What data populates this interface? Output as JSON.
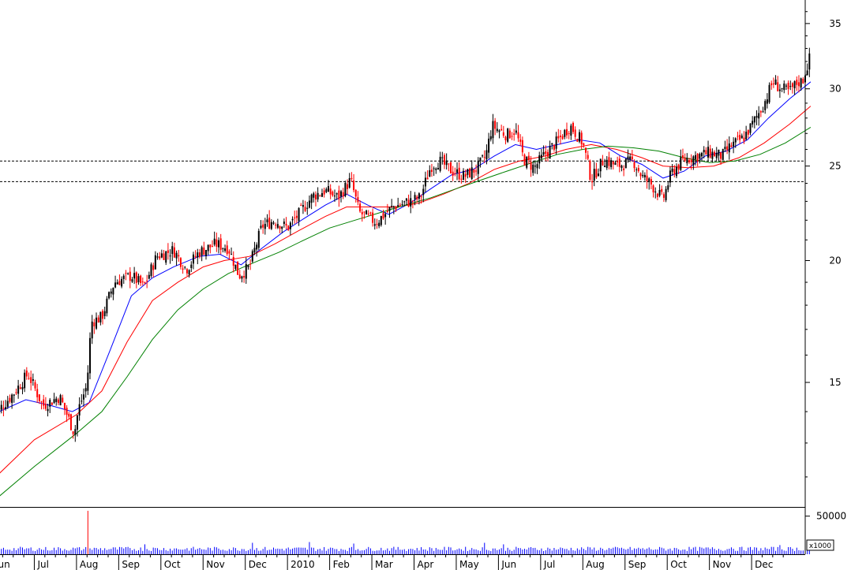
{
  "chart_data": {
    "type": "candlestick",
    "title": "",
    "xlabel": "",
    "ylabel": "",
    "y_scale": "log",
    "ylim": [
      11.2,
      37
    ],
    "y_ticks": [
      15,
      20,
      25,
      30,
      35
    ],
    "x_tick_labels": [
      "Jun",
      "Jul",
      "Aug",
      "Sep",
      "Oct",
      "Nov",
      "Dec",
      "2010",
      "Feb",
      "Mar",
      "Apr",
      "May",
      "Jun",
      "Jul",
      "Aug",
      "Sep",
      "Oct",
      "Nov",
      "Dec"
    ],
    "grid": false,
    "colors": {
      "up": "#000000",
      "down": "#ff0000",
      "ma_short": "#0000ff",
      "ma_mid": "#ff0000",
      "ma_long": "#008000",
      "volume": "#0000ff",
      "reference": "#000000"
    },
    "reference_lines": [
      25.3,
      24.1
    ],
    "price_path": [
      [
        0,
        13.8
      ],
      [
        0.5,
        14.6
      ],
      [
        0.85,
        15.3
      ],
      [
        1.2,
        14.2
      ],
      [
        1.6,
        14.5
      ],
      [
        1.95,
        13.3
      ],
      [
        2.05,
        14.1
      ],
      [
        2.25,
        14.9
      ],
      [
        2.35,
        17.3
      ],
      [
        2.6,
        17.5
      ],
      [
        2.9,
        19.0
      ],
      [
        3.3,
        19.3
      ],
      [
        3.6,
        18.8
      ],
      [
        3.9,
        20.2
      ],
      [
        4.3,
        20.5
      ],
      [
        4.6,
        19.6
      ],
      [
        4.9,
        20.4
      ],
      [
        5.3,
        20.8
      ],
      [
        5.6,
        20.6
      ],
      [
        5.85,
        19.3
      ],
      [
        6.1,
        19.7
      ],
      [
        6.4,
        21.7
      ],
      [
        6.7,
        22.0
      ],
      [
        7.0,
        21.6
      ],
      [
        7.3,
        22.4
      ],
      [
        7.6,
        23.3
      ],
      [
        7.9,
        23.6
      ],
      [
        8.2,
        23.2
      ],
      [
        8.5,
        24.2
      ],
      [
        8.7,
        22.4
      ],
      [
        9.1,
        21.9
      ],
      [
        9.5,
        22.7
      ],
      [
        9.9,
        23.0
      ],
      [
        10.15,
        23.2
      ],
      [
        10.4,
        25.0
      ],
      [
        10.6,
        25.3
      ],
      [
        10.9,
        24.7
      ],
      [
        11.2,
        24.4
      ],
      [
        11.5,
        24.9
      ],
      [
        11.7,
        25.6
      ],
      [
        11.85,
        27.5
      ],
      [
        12.2,
        26.9
      ],
      [
        12.4,
        27.2
      ],
      [
        12.6,
        25.4
      ],
      [
        12.85,
        24.9
      ],
      [
        13.1,
        25.7
      ],
      [
        13.4,
        26.5
      ],
      [
        13.7,
        27.5
      ],
      [
        14.0,
        26.4
      ],
      [
        14.2,
        24.2
      ],
      [
        14.5,
        25.4
      ],
      [
        14.8,
        25.0
      ],
      [
        15.2,
        25.3
      ],
      [
        15.4,
        24.4
      ],
      [
        15.6,
        24.0
      ],
      [
        15.9,
        23.1
      ],
      [
        16.1,
        24.6
      ],
      [
        16.4,
        25.4
      ],
      [
        16.7,
        25.6
      ],
      [
        17.0,
        25.8
      ],
      [
        17.3,
        25.6
      ],
      [
        17.5,
        26.2
      ],
      [
        17.8,
        26.7
      ],
      [
        18.0,
        27.5
      ],
      [
        18.3,
        29.0
      ],
      [
        18.5,
        30.5
      ],
      [
        18.7,
        30.0
      ],
      [
        18.9,
        29.8
      ],
      [
        19.1,
        30.5
      ],
      [
        19.2,
        30.5
      ],
      [
        19.4,
        32.5
      ]
    ],
    "ma_short": [
      [
        0,
        13.9
      ],
      [
        0.8,
        14.4
      ],
      [
        1.4,
        14.2
      ],
      [
        1.9,
        14.0
      ],
      [
        2.3,
        14.3
      ],
      [
        2.8,
        16.2
      ],
      [
        3.3,
        18.4
      ],
      [
        3.8,
        19.2
      ],
      [
        4.3,
        19.7
      ],
      [
        4.9,
        20.2
      ],
      [
        5.4,
        20.3
      ],
      [
        5.9,
        19.8
      ],
      [
        6.4,
        20.6
      ],
      [
        6.9,
        21.4
      ],
      [
        7.4,
        22.1
      ],
      [
        7.9,
        22.8
      ],
      [
        8.4,
        23.4
      ],
      [
        8.9,
        22.8
      ],
      [
        9.4,
        22.3
      ],
      [
        9.9,
        22.9
      ],
      [
        10.4,
        23.7
      ],
      [
        10.9,
        24.5
      ],
      [
        11.4,
        24.8
      ],
      [
        11.9,
        25.6
      ],
      [
        12.4,
        26.3
      ],
      [
        12.9,
        26.0
      ],
      [
        13.4,
        26.3
      ],
      [
        13.9,
        26.6
      ],
      [
        14.4,
        26.4
      ],
      [
        14.9,
        25.6
      ],
      [
        15.4,
        25.1
      ],
      [
        15.9,
        24.3
      ],
      [
        16.4,
        24.7
      ],
      [
        16.9,
        25.6
      ],
      [
        17.4,
        25.9
      ],
      [
        17.9,
        26.6
      ],
      [
        18.4,
        28.0
      ],
      [
        18.9,
        29.3
      ],
      [
        19.4,
        30.5
      ]
    ],
    "ma_mid": [
      [
        0,
        11.9
      ],
      [
        1.0,
        13.1
      ],
      [
        2.0,
        13.9
      ],
      [
        2.6,
        14.7
      ],
      [
        3.2,
        16.5
      ],
      [
        3.8,
        18.2
      ],
      [
        4.4,
        19.0
      ],
      [
        5.0,
        19.7
      ],
      [
        5.5,
        20.0
      ],
      [
        6.1,
        20.2
      ],
      [
        6.7,
        20.8
      ],
      [
        7.3,
        21.5
      ],
      [
        7.9,
        22.2
      ],
      [
        8.4,
        22.7
      ],
      [
        9.0,
        22.7
      ],
      [
        9.6,
        22.7
      ],
      [
        10.1,
        22.9
      ],
      [
        10.7,
        23.4
      ],
      [
        11.3,
        24.0
      ],
      [
        11.9,
        24.8
      ],
      [
        12.5,
        25.3
      ],
      [
        13.1,
        25.6
      ],
      [
        13.6,
        26.0
      ],
      [
        14.2,
        26.3
      ],
      [
        14.8,
        26.0
      ],
      [
        15.4,
        25.5
      ],
      [
        15.9,
        25.0
      ],
      [
        16.5,
        24.9
      ],
      [
        17.1,
        25.0
      ],
      [
        17.7,
        25.5
      ],
      [
        18.3,
        26.4
      ],
      [
        18.9,
        27.6
      ],
      [
        19.4,
        28.8
      ]
    ],
    "ma_long": [
      [
        0,
        11.3
      ],
      [
        1.0,
        12.3
      ],
      [
        2.0,
        13.3
      ],
      [
        2.6,
        14.0
      ],
      [
        3.2,
        15.2
      ],
      [
        3.8,
        16.6
      ],
      [
        4.4,
        17.8
      ],
      [
        5.0,
        18.7
      ],
      [
        5.6,
        19.4
      ],
      [
        6.2,
        19.9
      ],
      [
        6.8,
        20.4
      ],
      [
        7.4,
        21.0
      ],
      [
        8.0,
        21.6
      ],
      [
        8.6,
        22.0
      ],
      [
        9.2,
        22.4
      ],
      [
        9.8,
        22.8
      ],
      [
        10.4,
        23.2
      ],
      [
        11.0,
        23.7
      ],
      [
        11.6,
        24.2
      ],
      [
        12.2,
        24.7
      ],
      [
        12.8,
        25.2
      ],
      [
        13.4,
        25.7
      ],
      [
        14.0,
        26.0
      ],
      [
        14.6,
        26.2
      ],
      [
        15.2,
        26.1
      ],
      [
        15.8,
        25.9
      ],
      [
        16.4,
        25.5
      ],
      [
        17.0,
        25.2
      ],
      [
        17.6,
        25.3
      ],
      [
        18.2,
        25.7
      ],
      [
        18.8,
        26.4
      ],
      [
        19.4,
        27.4
      ]
    ],
    "volume": {
      "unit_label": "x1000",
      "y_tick": 50000,
      "ymax": 60000,
      "typical": 7000,
      "spikes": [
        [
          2.28,
          57000
        ],
        [
          3.6,
          13000
        ],
        [
          6.15,
          15000
        ],
        [
          7.5,
          16000
        ],
        [
          8.55,
          14000
        ],
        [
          11.65,
          15000
        ],
        [
          12.1,
          13000
        ],
        [
          17.5,
          9000
        ],
        [
          18.65,
          12000
        ]
      ]
    }
  }
}
